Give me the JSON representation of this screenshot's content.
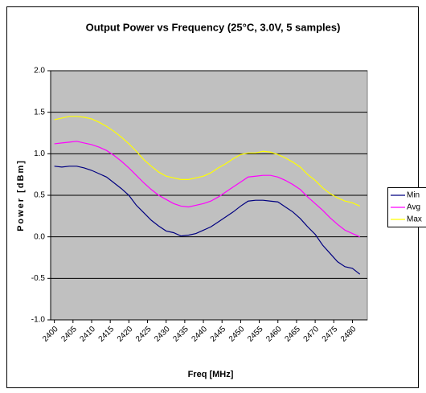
{
  "chart_data": {
    "type": "line",
    "title": "Output Power vs Frequency (25°C, 3.0V, 5 samples)",
    "x_label": "Freq [MHz]",
    "y_label": "Power [dBm]",
    "x": [
      2400,
      2402,
      2404,
      2406,
      2408,
      2410,
      2412,
      2414,
      2416,
      2418,
      2420,
      2422,
      2424,
      2426,
      2428,
      2430,
      2432,
      2434,
      2436,
      2438,
      2440,
      2442,
      2444,
      2446,
      2448,
      2450,
      2452,
      2454,
      2456,
      2458,
      2460,
      2462,
      2464,
      2466,
      2468,
      2470,
      2472,
      2474,
      2476,
      2478,
      2480,
      2482
    ],
    "series": [
      {
        "name": "Min",
        "color": "#000080",
        "values": [
          0.85,
          0.84,
          0.85,
          0.85,
          0.83,
          0.8,
          0.76,
          0.72,
          0.65,
          0.58,
          0.5,
          0.38,
          0.29,
          0.2,
          0.13,
          0.07,
          0.05,
          0.01,
          0.02,
          0.04,
          0.08,
          0.12,
          0.18,
          0.24,
          0.3,
          0.37,
          0.43,
          0.44,
          0.44,
          0.43,
          0.42,
          0.36,
          0.3,
          0.22,
          0.12,
          0.03,
          -0.1,
          -0.2,
          -0.3,
          -0.36,
          -0.38,
          -0.45
        ]
      },
      {
        "name": "Avg",
        "color": "#ff00ff",
        "values": [
          1.12,
          1.13,
          1.14,
          1.15,
          1.13,
          1.11,
          1.08,
          1.04,
          0.98,
          0.91,
          0.83,
          0.74,
          0.65,
          0.57,
          0.5,
          0.45,
          0.4,
          0.37,
          0.36,
          0.38,
          0.4,
          0.43,
          0.48,
          0.54,
          0.6,
          0.66,
          0.72,
          0.73,
          0.74,
          0.74,
          0.72,
          0.68,
          0.63,
          0.57,
          0.48,
          0.4,
          0.32,
          0.23,
          0.15,
          0.08,
          0.04,
          0.0
        ]
      },
      {
        "name": "Max",
        "color": "#ffff00",
        "values": [
          1.41,
          1.43,
          1.45,
          1.45,
          1.44,
          1.42,
          1.38,
          1.33,
          1.27,
          1.2,
          1.12,
          1.03,
          0.93,
          0.85,
          0.78,
          0.73,
          0.71,
          0.69,
          0.69,
          0.71,
          0.73,
          0.77,
          0.83,
          0.88,
          0.94,
          0.99,
          1.01,
          1.01,
          1.03,
          1.02,
          0.99,
          0.95,
          0.9,
          0.84,
          0.75,
          0.68,
          0.59,
          0.52,
          0.47,
          0.43,
          0.41,
          0.37
        ]
      }
    ],
    "xlim": [
      2399,
      2484
    ],
    "xticks": [
      2400,
      2405,
      2410,
      2415,
      2420,
      2425,
      2430,
      2435,
      2440,
      2445,
      2450,
      2455,
      2460,
      2465,
      2470,
      2475,
      2480
    ],
    "ylim": [
      -1,
      2
    ],
    "yticks": [
      {
        "value": 2,
        "label": "2.0"
      },
      {
        "value": 1.5,
        "label": "1.5"
      },
      {
        "value": 1,
        "label": "1.0"
      },
      {
        "value": 0.5,
        "label": "0.5"
      },
      {
        "value": 0,
        "label": "0.0"
      },
      {
        "value": -0.5,
        "label": "-0.5"
      },
      {
        "value": -1,
        "label": "-1.0"
      }
    ],
    "grid": true,
    "plot_background": "#c0c0c0",
    "legend": "right"
  }
}
